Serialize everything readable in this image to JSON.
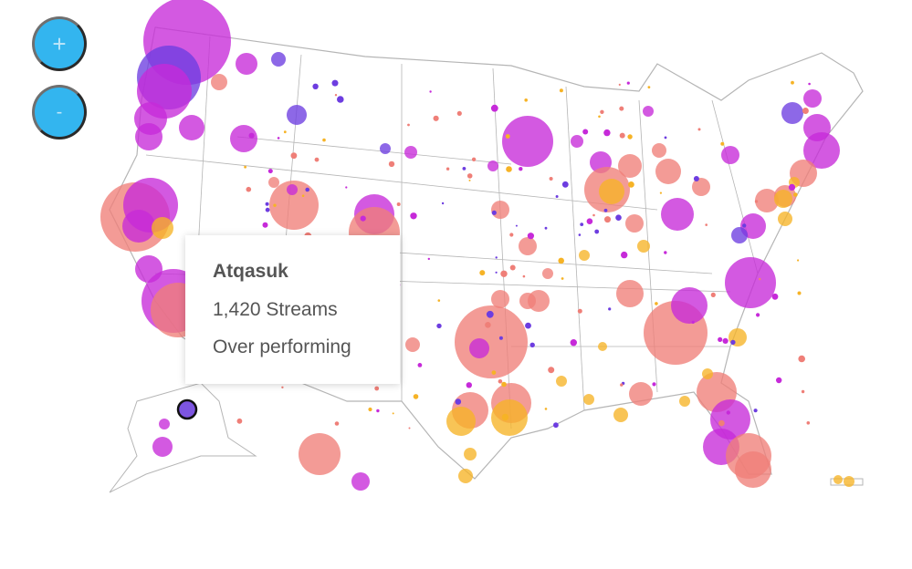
{
  "controls": {
    "zoom_in_label": "+",
    "zoom_out_label": "-"
  },
  "tooltip": {
    "title": "Atqasuk",
    "streams": "1,420 Streams",
    "status": "Over performing"
  },
  "colors": {
    "magenta": "#c62ad9",
    "salmon": "#ef7f78",
    "orange": "#f6b326",
    "violet": "#6d3de0",
    "button": "#33b5ef",
    "border": "#b5b5b5"
  },
  "selected_point": {
    "name": "Atqasuk",
    "color": "#7d55e0"
  }
}
